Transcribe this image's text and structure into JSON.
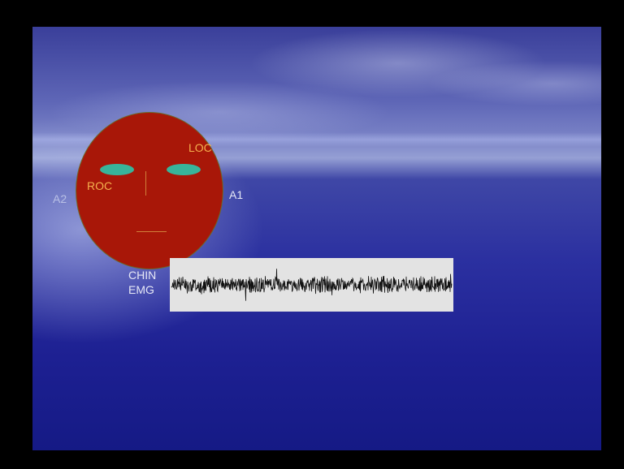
{
  "slide": {
    "labels": {
      "loc": "LOC",
      "roc": "ROC",
      "a2": "A2",
      "a1": "A1",
      "chin": "CHIN",
      "emg": "EMG"
    }
  },
  "colors": {
    "face": "#a81708",
    "eyes": "#38b49a",
    "electrode_label": "#f4b04e",
    "reference_label": "#e6e8f6",
    "trace": "#111111",
    "trace_background": "#e3e3e3"
  }
}
